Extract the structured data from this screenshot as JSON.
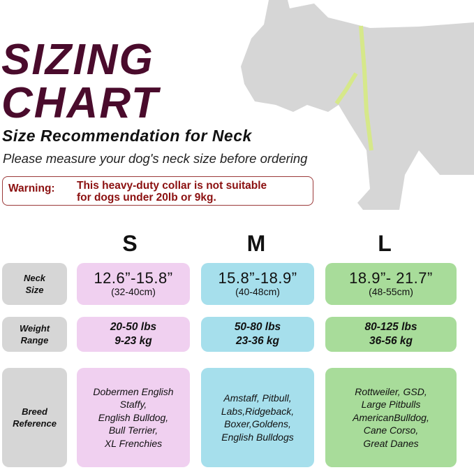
{
  "title_line1": "SIZING",
  "title_line2": "CHART",
  "subtitle": "Size Recommendation for Neck",
  "instruction": "Please measure your dog's neck size before ordering",
  "warning": {
    "label": "Warning:",
    "line1": "This heavy-duty collar is not suitable",
    "line2": "for dogs under 20lb or 9kg."
  },
  "colors": {
    "title": "#4a0b2c",
    "warning": "#8b1010",
    "S": "#f0d0f0",
    "M": "#a6dfec",
    "L": "#a8dc9a",
    "label": "#d6d6d6"
  },
  "rows": [
    {
      "label1": "Neck",
      "label2": "Size"
    },
    {
      "label1": "Weight",
      "label2": "Range"
    },
    {
      "label1": "Breed",
      "label2": "Reference"
    }
  ],
  "sizes": [
    {
      "name": "S",
      "neck_in": "12.6”-15.8”",
      "neck_cm": "(32-40cm)",
      "lbs": "20-50 lbs",
      "kg": "9-23 kg",
      "breeds": [
        "Dobermen English",
        "Staffy,",
        "English Bulldog,",
        "Bull Terrier,",
        "XL Frenchies"
      ]
    },
    {
      "name": "M",
      "neck_in": "15.8”-18.9”",
      "neck_cm": "(40-48cm)",
      "lbs": "50-80 lbs",
      "kg": "23-36 kg",
      "breeds": [
        "Amstaff, Pitbull,",
        "Labs,Ridgeback,",
        "Boxer,Goldens,",
        "English Bulldogs"
      ]
    },
    {
      "name": "L",
      "neck_in": "18.9”- 21.7”",
      "neck_cm": "(48-55cm)",
      "lbs": "80-125 lbs",
      "kg": "36-56 kg",
      "breeds": [
        "Rottweiler, GSD,",
        "Large Pitbulls",
        "AmericanBulldog,",
        "Cane Corso,",
        "Great Danes"
      ]
    }
  ]
}
